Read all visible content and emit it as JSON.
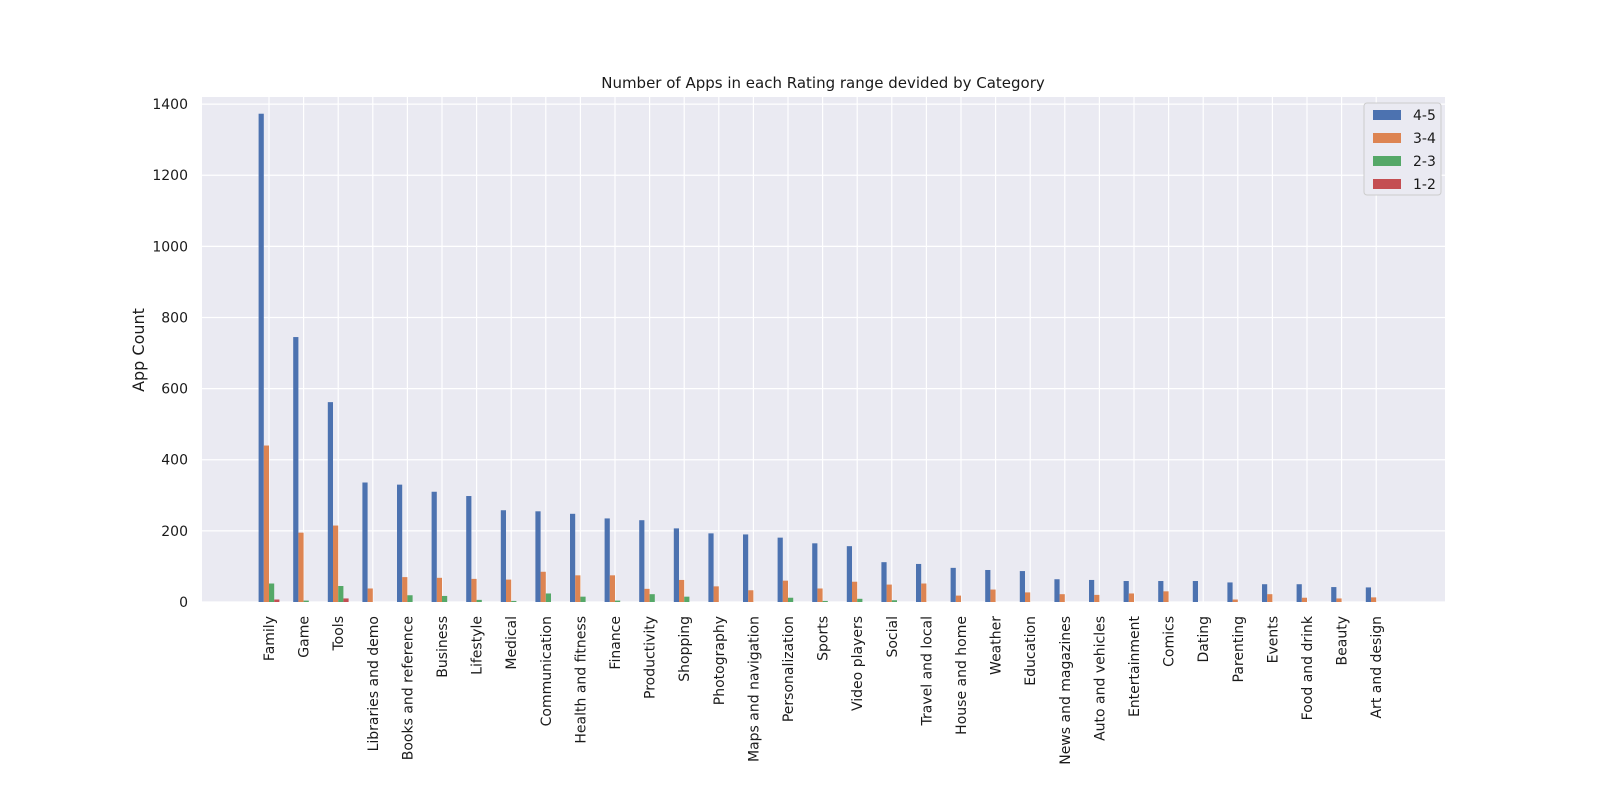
{
  "chart_data": {
    "type": "bar",
    "title": "Number of Apps in each Rating range devided by Category",
    "xlabel": "",
    "ylabel": "App Count",
    "ylim": [
      0,
      1420
    ],
    "yticks": [
      0,
      200,
      400,
      600,
      800,
      1000,
      1200,
      1400
    ],
    "grid": true,
    "legend_position": "top-right",
    "categories": [
      "Family",
      "Game",
      "Tools",
      "Libraries and demo",
      "Books and reference",
      "Business",
      "Lifestyle",
      "Medical",
      "Communication",
      "Health and fitness",
      "Finance",
      "Productivity",
      "Shopping",
      "Photography",
      "Maps and navigation",
      "Personalization",
      "Sports",
      "Video players",
      "Social",
      "Travel and local",
      "House and home",
      "Weather",
      "Education",
      "News and magazines",
      "Auto and vehicles",
      "Entertainment",
      "Comics",
      "Dating",
      "Parenting",
      "Events",
      "Food and drink",
      "Beauty",
      "Art and design"
    ],
    "series": [
      {
        "name": "4-5",
        "color": "#4c72b0",
        "values": [
          1373,
          745,
          562,
          336,
          330,
          310,
          298,
          258,
          255,
          248,
          235,
          230,
          207,
          193,
          190,
          181,
          165,
          157,
          112,
          107,
          96,
          90,
          87,
          64,
          62,
          59,
          59,
          59,
          55,
          50,
          50,
          42,
          41
        ]
      },
      {
        "name": "3-4",
        "color": "#dd8452",
        "values": [
          440,
          195,
          215,
          38,
          70,
          68,
          65,
          63,
          85,
          75,
          75,
          37,
          62,
          44,
          33,
          60,
          38,
          57,
          49,
          52,
          18,
          35,
          27,
          22,
          20,
          24,
          30,
          0,
          7,
          22,
          12,
          10,
          13
        ]
      },
      {
        "name": "2-3",
        "color": "#55a868",
        "values": [
          52,
          4,
          45,
          0,
          19,
          17,
          6,
          3,
          24,
          15,
          4,
          22,
          15,
          0,
          0,
          12,
          3,
          9,
          5,
          0,
          0,
          0,
          0,
          0,
          0,
          0,
          0,
          0,
          0,
          0,
          0,
          0,
          0
        ]
      },
      {
        "name": "1-2",
        "color": "#c44e52",
        "values": [
          7,
          0,
          10,
          0,
          0,
          0,
          0,
          0,
          0,
          0,
          0,
          0,
          0,
          0,
          0,
          0,
          0,
          0,
          0,
          0,
          0,
          0,
          0,
          0,
          0,
          0,
          0,
          0,
          0,
          0,
          0,
          0,
          0
        ]
      }
    ]
  }
}
